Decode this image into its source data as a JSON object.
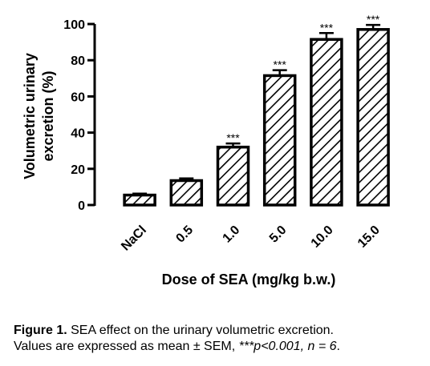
{
  "chart_data": {
    "type": "bar",
    "categories": [
      "NaCl",
      "0.5",
      "1.0",
      "5.0",
      "10.0",
      "15.0"
    ],
    "values": [
      5.5,
      13.5,
      32,
      71.5,
      91.5,
      97
    ],
    "errors": [
      0.8,
      1.2,
      2,
      3,
      3.5,
      2.5
    ],
    "significance": [
      "",
      "",
      "***",
      "***",
      "***",
      "***"
    ],
    "ylim": [
      0,
      100
    ],
    "yticks": [
      0,
      20,
      40,
      60,
      80,
      100
    ],
    "ylabel_line1": "Volumetric urinary",
    "ylabel_line2": "excretion (%)",
    "xlabel": "Dose of SEA (mg/kg  b.w.)",
    "bar_fill": "diagonal-hatch",
    "bar_color": "#000000",
    "grid": false
  },
  "caption": {
    "figure_label": "Figure 1.",
    "line1_text": " SEA effect on the urinary volumetric excretion.",
    "line2_text": "Values are expressed as mean ± SEM, ",
    "line2_italic": "***p<0.001, n = 6",
    "line2_end": "."
  }
}
